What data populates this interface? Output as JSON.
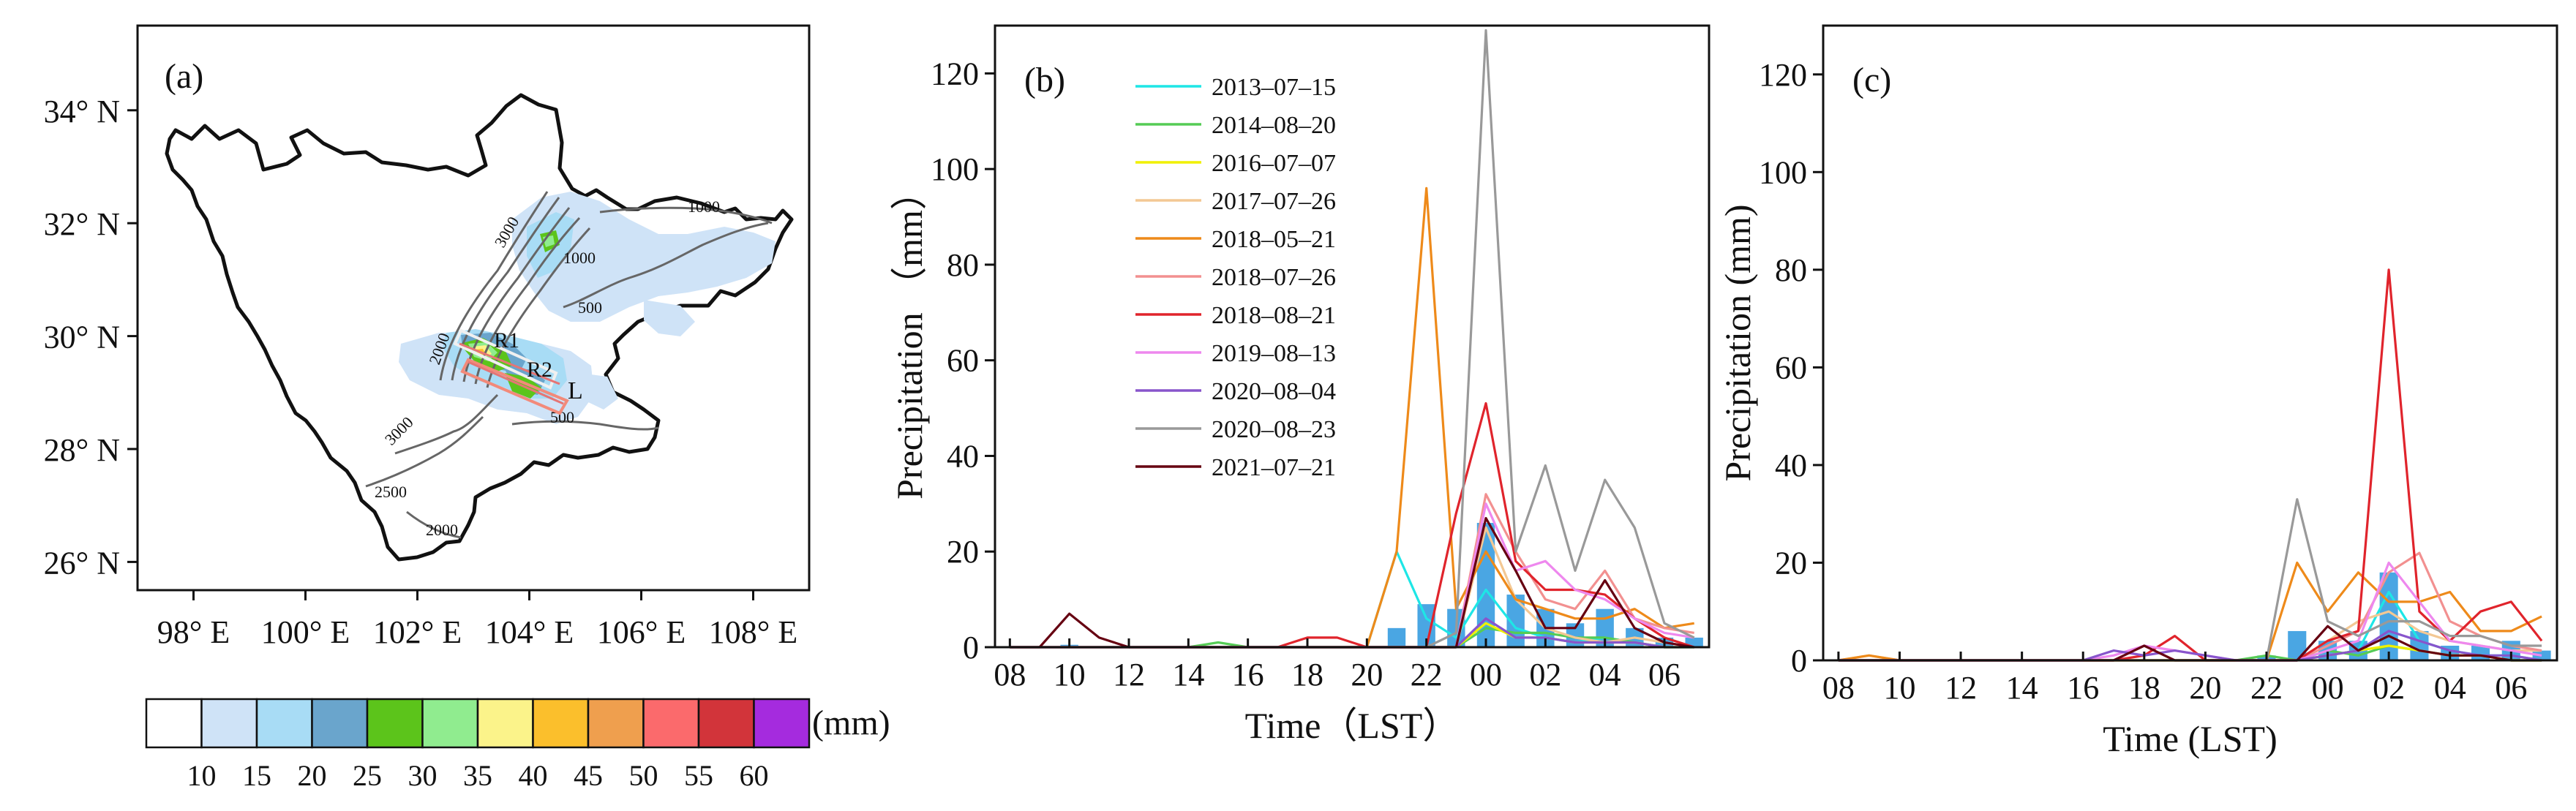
{
  "panel_a": {
    "label": "(a)",
    "lat_labels": [
      "34° N",
      "32° N",
      "30° N",
      "28° N",
      "26° N"
    ],
    "lat_values": [
      34,
      32,
      30,
      28,
      26
    ],
    "lon_labels": [
      "98° E",
      "100° E",
      "102° E",
      "104° E",
      "106° E",
      "108° E"
    ],
    "lon_values": [
      98,
      100,
      102,
      104,
      106,
      108
    ],
    "extent": {
      "lon": [
        97,
        109
      ],
      "lat": [
        25.5,
        35.5
      ]
    },
    "region_labels": [
      "R1",
      "R2",
      "L"
    ],
    "contour_labels": [
      "1000",
      "1000",
      "3000",
      "500",
      "2000",
      "3000",
      "500",
      "2500",
      "2000"
    ],
    "legend": {
      "colors": [
        "#ffffff",
        "#cfe3f7",
        "#a8dcf5",
        "#6aa5cc",
        "#5cc41b",
        "#90ec8f",
        "#fbf38a",
        "#fbbf2c",
        "#ef9f4e",
        "#fb6a6c",
        "#d2343a",
        "#a52bde"
      ],
      "tick_labels": [
        "10",
        "15",
        "20",
        "25",
        "30",
        "35",
        "40",
        "45",
        "50",
        "55",
        "60"
      ],
      "unit": "(mm)"
    }
  },
  "chart_data": [
    {
      "panel": "(b)",
      "type": "line",
      "ylabel": "Precipitation （mm）",
      "xlabel": "Time（LST）",
      "ylim": [
        0,
        130
      ],
      "yticks": [
        0,
        20,
        40,
        60,
        80,
        100,
        120
      ],
      "x_hours": [
        8,
        9,
        10,
        11,
        12,
        13,
        14,
        15,
        16,
        17,
        18,
        19,
        20,
        21,
        22,
        23,
        0,
        1,
        2,
        3,
        4,
        5,
        6,
        7
      ],
      "x_tick_labels": [
        "08",
        "10",
        "12",
        "14",
        "16",
        "18",
        "20",
        "22",
        "00",
        "02",
        "04",
        "06"
      ],
      "bars": {
        "name": "mean",
        "color": "#4aa6e3",
        "values": [
          0,
          0,
          0.5,
          0,
          0,
          0,
          0,
          0,
          0,
          0,
          0,
          0,
          0,
          4,
          9,
          8,
          26,
          11,
          8,
          5,
          8,
          4,
          2,
          2
        ]
      },
      "series": [
        {
          "name": "2013–07–15",
          "color": "#1ee6e6",
          "values": [
            0,
            0,
            0,
            0,
            0,
            0,
            0,
            0,
            0,
            0,
            0,
            0,
            0,
            20,
            6,
            2,
            12,
            4,
            2,
            1,
            2,
            1,
            0,
            0
          ]
        },
        {
          "name": "2014–08–20",
          "color": "#55cc55",
          "values": [
            0,
            0,
            0,
            0,
            0,
            0,
            0,
            1,
            0,
            0,
            0,
            0,
            0,
            0,
            0,
            0,
            4,
            3,
            3,
            2,
            2,
            1,
            0,
            0
          ]
        },
        {
          "name": "2016–07–07",
          "color": "#f0f000",
          "values": [
            0,
            0,
            0,
            0,
            0,
            0,
            0,
            0,
            0,
            0,
            0,
            0,
            0,
            0,
            0,
            0,
            5,
            2,
            2,
            1,
            1,
            1,
            0,
            0
          ]
        },
        {
          "name": "2017–07–26",
          "color": "#f3c894",
          "values": [
            0,
            0,
            0,
            0,
            0,
            0,
            0,
            0,
            0,
            0,
            0,
            0,
            0,
            0,
            0,
            0,
            25,
            10,
            4,
            2,
            1,
            2,
            1,
            0
          ]
        },
        {
          "name": "2018–05–21",
          "color": "#ee8a1a",
          "values": [
            0,
            0,
            0,
            0,
            0,
            0,
            0,
            0,
            0,
            0,
            0,
            0,
            0,
            20,
            96,
            8,
            20,
            10,
            8,
            6,
            6,
            8,
            4,
            5
          ]
        },
        {
          "name": "2018–07–26",
          "color": "#f29090",
          "values": [
            0,
            0,
            0,
            0,
            0,
            0,
            0,
            0,
            0,
            0,
            0,
            0,
            0,
            0,
            0,
            0,
            32,
            20,
            10,
            8,
            16,
            6,
            4,
            3
          ]
        },
        {
          "name": "2018–08–21",
          "color": "#e0242c",
          "values": [
            0,
            0,
            0,
            0,
            0,
            0,
            0,
            0,
            0,
            0,
            2,
            2,
            0,
            0,
            0,
            28,
            51,
            18,
            12,
            12,
            11,
            6,
            2,
            0
          ]
        },
        {
          "name": "2019–08–13",
          "color": "#ee88ee",
          "values": [
            0,
            0,
            0,
            0,
            0,
            0,
            0,
            0,
            0,
            0,
            0,
            0,
            0,
            0,
            0,
            0,
            30,
            16,
            18,
            12,
            10,
            6,
            3,
            2
          ]
        },
        {
          "name": "2020–08–04",
          "color": "#8855cc",
          "values": [
            0,
            0,
            0,
            0,
            0,
            0,
            0,
            0,
            0,
            0,
            0,
            0,
            0,
            0,
            0,
            0,
            6,
            2,
            2,
            1,
            1,
            1,
            0,
            0
          ]
        },
        {
          "name": "2020–08–23",
          "color": "#999999",
          "values": [
            0,
            0,
            0,
            0,
            0,
            0,
            0,
            0,
            0,
            0,
            0,
            0,
            0,
            0,
            0,
            3,
            129,
            20,
            38,
            16,
            35,
            25,
            5,
            2
          ]
        },
        {
          "name": "2021–07–21",
          "color": "#660011",
          "values": [
            0,
            0,
            7,
            2,
            0,
            0,
            0,
            0,
            0,
            0,
            0,
            0,
            0,
            0,
            0,
            0,
            27,
            16,
            4,
            4,
            14,
            4,
            1,
            0
          ]
        }
      ]
    },
    {
      "panel": "(c)",
      "type": "line",
      "ylabel": "Precipitation (mm)",
      "xlabel": "Time (LST)",
      "ylim": [
        0,
        130
      ],
      "yticks": [
        0,
        20,
        40,
        60,
        80,
        100,
        120
      ],
      "x_hours": [
        8,
        9,
        10,
        11,
        12,
        13,
        14,
        15,
        16,
        17,
        18,
        19,
        20,
        21,
        22,
        23,
        0,
        1,
        2,
        3,
        4,
        5,
        6,
        7
      ],
      "x_tick_labels": [
        "08",
        "10",
        "12",
        "14",
        "16",
        "18",
        "20",
        "22",
        "00",
        "02",
        "04",
        "06"
      ],
      "bars": {
        "name": "mean",
        "color": "#4aa6e3",
        "values": [
          0,
          0,
          0,
          0,
          0,
          0,
          0,
          0,
          0,
          0,
          0,
          0,
          0,
          0,
          1,
          6,
          4,
          4,
          18,
          6,
          3,
          3,
          4,
          2
        ]
      },
      "series": [
        {
          "name": "2013–07–15",
          "color": "#1ee6e6",
          "values": [
            0,
            0,
            0,
            0,
            0,
            0,
            0,
            0,
            0,
            0,
            0,
            0,
            0,
            0,
            0,
            0,
            1,
            2,
            14,
            4,
            2,
            1,
            1,
            0
          ]
        },
        {
          "name": "2014–08–20",
          "color": "#55cc55",
          "values": [
            0,
            0,
            0,
            0,
            0,
            0,
            0,
            0,
            0,
            0,
            0,
            0,
            0,
            0,
            1,
            0,
            2,
            1,
            3,
            2,
            1,
            1,
            0,
            0
          ]
        },
        {
          "name": "2016–07–07",
          "color": "#f0f000",
          "values": [
            0,
            0,
            0,
            0,
            0,
            0,
            0,
            0,
            0,
            0,
            0,
            0,
            0,
            0,
            0,
            0,
            1,
            2,
            3,
            2,
            1,
            1,
            0,
            0
          ]
        },
        {
          "name": "2017–07–26",
          "color": "#f3c894",
          "values": [
            0,
            1,
            0,
            0,
            0,
            0,
            0,
            0,
            0,
            0,
            0,
            0,
            0,
            0,
            0,
            0,
            4,
            8,
            10,
            6,
            4,
            3,
            2,
            2
          ]
        },
        {
          "name": "2018–05–21",
          "color": "#ee8a1a",
          "values": [
            0,
            1,
            0,
            0,
            0,
            0,
            0,
            0,
            0,
            0,
            0,
            0,
            0,
            0,
            0,
            20,
            10,
            18,
            12,
            12,
            14,
            6,
            6,
            9
          ]
        },
        {
          "name": "2018–07–26",
          "color": "#f29090",
          "values": [
            0,
            0,
            0,
            0,
            0,
            0,
            0,
            0,
            0,
            0,
            0,
            0,
            0,
            0,
            0,
            0,
            3,
            6,
            18,
            22,
            8,
            5,
            3,
            2
          ]
        },
        {
          "name": "2018–08–21",
          "color": "#e0242c",
          "values": [
            0,
            0,
            0,
            0,
            0,
            0,
            0,
            0,
            0,
            0,
            1,
            5,
            0,
            0,
            0,
            0,
            4,
            6,
            80,
            10,
            4,
            10,
            12,
            4
          ]
        },
        {
          "name": "2019–08–13",
          "color": "#ee88ee",
          "values": [
            0,
            0,
            0,
            0,
            0,
            0,
            0,
            0,
            0,
            1,
            3,
            2,
            1,
            0,
            0,
            0,
            2,
            4,
            20,
            12,
            4,
            3,
            2,
            1
          ]
        },
        {
          "name": "2020–08–04",
          "color": "#8855cc",
          "values": [
            0,
            0,
            0,
            0,
            0,
            0,
            0,
            0,
            0,
            2,
            1,
            2,
            1,
            0,
            0,
            0,
            1,
            2,
            6,
            4,
            2,
            1,
            1,
            0
          ]
        },
        {
          "name": "2020–08–23",
          "color": "#999999",
          "values": [
            0,
            0,
            0,
            0,
            0,
            0,
            0,
            0,
            0,
            0,
            0,
            0,
            0,
            0,
            0,
            33,
            8,
            5,
            8,
            8,
            5,
            5,
            3,
            3
          ]
        },
        {
          "name": "2021–07–21",
          "color": "#660011",
          "values": [
            0,
            0,
            0,
            0,
            0,
            0,
            0,
            0,
            0,
            0,
            3,
            0,
            0,
            0,
            0,
            0,
            7,
            2,
            5,
            2,
            1,
            1,
            0,
            0
          ]
        }
      ]
    }
  ]
}
